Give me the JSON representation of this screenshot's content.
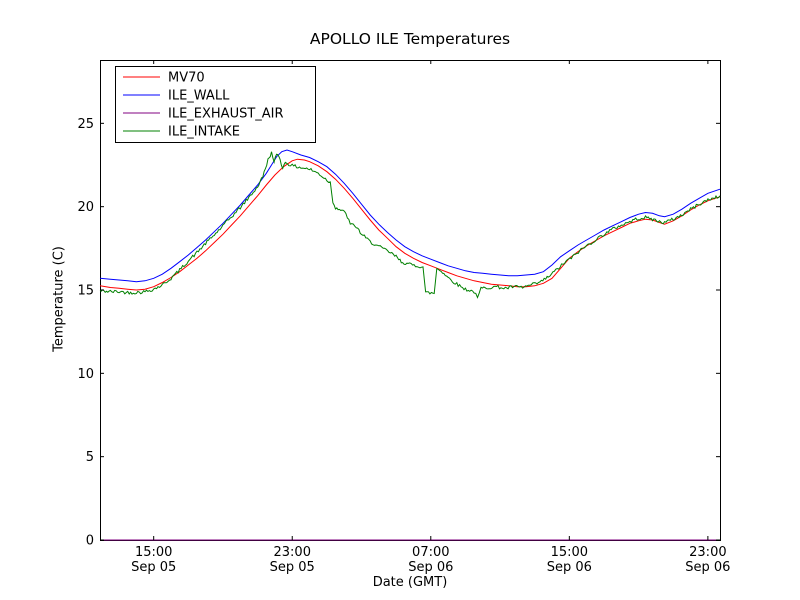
{
  "chart_data": {
    "type": "line",
    "title": "APOLLO ILE Temperatures",
    "xlabel": "Date (GMT)",
    "ylabel": "Temperature (C)",
    "grid": false,
    "x_encoding": "hours after Sep 05 12:00 GMT",
    "xlim": [
      -0.1,
      35.7
    ],
    "ylim": [
      0,
      28.8
    ],
    "yticks": [
      0,
      5,
      10,
      15,
      20,
      25
    ],
    "xticks": [
      {
        "t": 3,
        "time": "15:00",
        "date": "Sep 05"
      },
      {
        "t": 11,
        "time": "23:00",
        "date": "Sep 05"
      },
      {
        "t": 19,
        "time": "07:00",
        "date": "Sep 06"
      },
      {
        "t": 27,
        "time": "15:00",
        "date": "Sep 06"
      },
      {
        "t": 35,
        "time": "23:00",
        "date": "Sep 06"
      }
    ],
    "legend": {
      "position": "upper left",
      "entries": [
        "MV70",
        "ILE_WALL",
        "ILE_EXHAUST_AIR",
        "ILE_INTAKE"
      ]
    },
    "series": [
      {
        "name": "MV70",
        "color": "#ff0000",
        "points": [
          [
            -0.1,
            15.25
          ],
          [
            0.5,
            15.15
          ],
          [
            1.0,
            15.1
          ],
          [
            1.5,
            15.05
          ],
          [
            2.0,
            15.0
          ],
          [
            2.5,
            15.05
          ],
          [
            3.0,
            15.2
          ],
          [
            3.5,
            15.45
          ],
          [
            4.0,
            15.75
          ],
          [
            4.5,
            16.1
          ],
          [
            5.0,
            16.5
          ],
          [
            5.5,
            16.9
          ],
          [
            6.0,
            17.35
          ],
          [
            6.5,
            17.85
          ],
          [
            7.0,
            18.35
          ],
          [
            7.5,
            18.9
          ],
          [
            8.0,
            19.45
          ],
          [
            8.5,
            20.05
          ],
          [
            9.0,
            20.65
          ],
          [
            9.5,
            21.3
          ],
          [
            10.0,
            21.9
          ],
          [
            10.5,
            22.4
          ],
          [
            11.0,
            22.75
          ],
          [
            11.3,
            22.85
          ],
          [
            11.7,
            22.8
          ],
          [
            12.0,
            22.7
          ],
          [
            12.5,
            22.45
          ],
          [
            13.0,
            22.1
          ],
          [
            13.5,
            21.65
          ],
          [
            14.0,
            21.1
          ],
          [
            14.5,
            20.5
          ],
          [
            15.0,
            19.85
          ],
          [
            15.5,
            19.2
          ],
          [
            16.0,
            18.6
          ],
          [
            16.5,
            18.1
          ],
          [
            17.0,
            17.6
          ],
          [
            17.5,
            17.2
          ],
          [
            18.0,
            16.9
          ],
          [
            18.5,
            16.65
          ],
          [
            19.0,
            16.45
          ],
          [
            19.5,
            16.25
          ],
          [
            20.0,
            16.05
          ],
          [
            20.5,
            15.85
          ],
          [
            21.0,
            15.7
          ],
          [
            21.5,
            15.55
          ],
          [
            22.0,
            15.45
          ],
          [
            22.5,
            15.35
          ],
          [
            23.0,
            15.3
          ],
          [
            23.5,
            15.25
          ],
          [
            24.0,
            15.2
          ],
          [
            24.5,
            15.2
          ],
          [
            25.0,
            15.25
          ],
          [
            25.5,
            15.4
          ],
          [
            26.0,
            15.7
          ],
          [
            26.5,
            16.3
          ],
          [
            27.0,
            16.9
          ],
          [
            27.5,
            17.3
          ],
          [
            28.0,
            17.65
          ],
          [
            28.5,
            17.95
          ],
          [
            29.0,
            18.25
          ],
          [
            29.5,
            18.5
          ],
          [
            30.0,
            18.75
          ],
          [
            30.5,
            19.0
          ],
          [
            31.0,
            19.15
          ],
          [
            31.4,
            19.25
          ],
          [
            31.8,
            19.2
          ],
          [
            32.2,
            19.05
          ],
          [
            32.5,
            18.95
          ],
          [
            33.0,
            19.15
          ],
          [
            33.5,
            19.45
          ],
          [
            34.0,
            19.8
          ],
          [
            34.5,
            20.1
          ],
          [
            35.0,
            20.35
          ],
          [
            35.7,
            20.6
          ]
        ]
      },
      {
        "name": "ILE_WALL",
        "color": "#0000ff",
        "points": [
          [
            -0.1,
            15.7
          ],
          [
            0.5,
            15.65
          ],
          [
            1.0,
            15.6
          ],
          [
            1.5,
            15.55
          ],
          [
            2.0,
            15.5
          ],
          [
            2.5,
            15.55
          ],
          [
            3.0,
            15.7
          ],
          [
            3.5,
            15.95
          ],
          [
            4.0,
            16.3
          ],
          [
            4.5,
            16.7
          ],
          [
            5.0,
            17.1
          ],
          [
            5.5,
            17.55
          ],
          [
            6.0,
            18.0
          ],
          [
            6.5,
            18.5
          ],
          [
            7.0,
            19.0
          ],
          [
            7.5,
            19.55
          ],
          [
            8.0,
            20.1
          ],
          [
            8.5,
            20.7
          ],
          [
            9.0,
            21.3
          ],
          [
            9.5,
            22.0
          ],
          [
            9.8,
            22.5
          ],
          [
            10.1,
            23.0
          ],
          [
            10.4,
            23.3
          ],
          [
            10.7,
            23.4
          ],
          [
            11.0,
            23.3
          ],
          [
            11.5,
            23.1
          ],
          [
            12.0,
            22.95
          ],
          [
            12.5,
            22.7
          ],
          [
            13.0,
            22.4
          ],
          [
            13.5,
            21.95
          ],
          [
            14.0,
            21.4
          ],
          [
            14.5,
            20.8
          ],
          [
            15.0,
            20.15
          ],
          [
            15.5,
            19.5
          ],
          [
            16.0,
            18.95
          ],
          [
            16.5,
            18.45
          ],
          [
            17.0,
            18.0
          ],
          [
            17.5,
            17.6
          ],
          [
            18.0,
            17.3
          ],
          [
            18.5,
            17.05
          ],
          [
            19.0,
            16.85
          ],
          [
            19.5,
            16.65
          ],
          [
            20.0,
            16.45
          ],
          [
            20.5,
            16.3
          ],
          [
            21.0,
            16.15
          ],
          [
            21.5,
            16.05
          ],
          [
            22.0,
            16.0
          ],
          [
            22.5,
            15.95
          ],
          [
            23.0,
            15.9
          ],
          [
            23.5,
            15.85
          ],
          [
            24.0,
            15.85
          ],
          [
            24.5,
            15.9
          ],
          [
            25.0,
            15.95
          ],
          [
            25.5,
            16.1
          ],
          [
            26.0,
            16.5
          ],
          [
            26.5,
            17.0
          ],
          [
            27.0,
            17.35
          ],
          [
            27.5,
            17.7
          ],
          [
            28.0,
            18.0
          ],
          [
            28.5,
            18.3
          ],
          [
            29.0,
            18.6
          ],
          [
            29.5,
            18.85
          ],
          [
            30.0,
            19.1
          ],
          [
            30.5,
            19.35
          ],
          [
            31.0,
            19.55
          ],
          [
            31.4,
            19.65
          ],
          [
            31.8,
            19.6
          ],
          [
            32.2,
            19.45
          ],
          [
            32.5,
            19.4
          ],
          [
            33.0,
            19.55
          ],
          [
            33.5,
            19.85
          ],
          [
            34.0,
            20.2
          ],
          [
            34.5,
            20.5
          ],
          [
            35.0,
            20.8
          ],
          [
            35.7,
            21.05
          ]
        ]
      },
      {
        "name": "ILE_EXHAUST_AIR",
        "color": "#800080",
        "points": [
          [
            -0.1,
            0.0
          ],
          [
            35.7,
            0.0
          ]
        ]
      },
      {
        "name": "ILE_INTAKE",
        "color": "#008000",
        "noise_amplitude": 0.1,
        "points": [
          [
            -0.1,
            14.95
          ],
          [
            0.5,
            14.9
          ],
          [
            1.0,
            14.9
          ],
          [
            1.5,
            14.85
          ],
          [
            2.0,
            14.85
          ],
          [
            2.5,
            14.9
          ],
          [
            3.0,
            15.05
          ],
          [
            3.5,
            15.3
          ],
          [
            4.0,
            15.7
          ],
          [
            4.5,
            16.2
          ],
          [
            5.0,
            16.75
          ],
          [
            5.5,
            17.25
          ],
          [
            6.0,
            17.8
          ],
          [
            6.5,
            18.3
          ],
          [
            7.0,
            18.85
          ],
          [
            7.5,
            19.4
          ],
          [
            8.0,
            19.95
          ],
          [
            8.5,
            20.55
          ],
          [
            9.0,
            21.2
          ],
          [
            9.3,
            21.8
          ],
          [
            9.6,
            22.8
          ],
          [
            9.8,
            23.25
          ],
          [
            9.95,
            22.6
          ],
          [
            10.1,
            23.2
          ],
          [
            10.3,
            22.9
          ],
          [
            10.45,
            22.25
          ],
          [
            10.6,
            22.7
          ],
          [
            10.8,
            22.55
          ],
          [
            11.0,
            22.45
          ],
          [
            11.5,
            22.35
          ],
          [
            12.0,
            22.25
          ],
          [
            12.5,
            22.0
          ],
          [
            13.0,
            21.6
          ],
          [
            13.2,
            21.45
          ],
          [
            13.35,
            20.3
          ],
          [
            13.5,
            19.95
          ],
          [
            13.8,
            19.8
          ],
          [
            14.1,
            19.6
          ],
          [
            14.35,
            18.95
          ],
          [
            14.7,
            18.8
          ],
          [
            15.0,
            18.35
          ],
          [
            15.5,
            17.9
          ],
          [
            16.0,
            17.6
          ],
          [
            16.5,
            17.35
          ],
          [
            17.0,
            17.0
          ],
          [
            17.3,
            16.7
          ],
          [
            17.7,
            16.55
          ],
          [
            18.2,
            16.45
          ],
          [
            18.55,
            16.4
          ],
          [
            18.7,
            14.85
          ],
          [
            19.2,
            14.8
          ],
          [
            19.35,
            16.3
          ],
          [
            19.6,
            16.15
          ],
          [
            20.0,
            15.75
          ],
          [
            20.5,
            15.35
          ],
          [
            21.0,
            15.05
          ],
          [
            21.5,
            14.9
          ],
          [
            21.7,
            14.5
          ],
          [
            21.9,
            15.1
          ],
          [
            22.3,
            15.15
          ],
          [
            22.8,
            15.2
          ],
          [
            23.3,
            15.1
          ],
          [
            23.8,
            15.2
          ],
          [
            24.3,
            15.15
          ],
          [
            24.8,
            15.3
          ],
          [
            25.3,
            15.45
          ],
          [
            25.8,
            15.8
          ],
          [
            26.3,
            16.25
          ],
          [
            26.8,
            16.7
          ],
          [
            27.2,
            17.0
          ],
          [
            27.6,
            17.35
          ],
          [
            28.0,
            17.65
          ],
          [
            28.5,
            18.0
          ],
          [
            29.0,
            18.35
          ],
          [
            29.5,
            18.65
          ],
          [
            30.0,
            18.9
          ],
          [
            30.5,
            19.1
          ],
          [
            31.0,
            19.3
          ],
          [
            31.4,
            19.35
          ],
          [
            31.8,
            19.25
          ],
          [
            32.2,
            19.1
          ],
          [
            32.5,
            19.05
          ],
          [
            33.0,
            19.25
          ],
          [
            33.5,
            19.5
          ],
          [
            34.0,
            19.85
          ],
          [
            34.5,
            20.15
          ],
          [
            35.0,
            20.4
          ],
          [
            35.7,
            20.65
          ]
        ]
      }
    ]
  }
}
